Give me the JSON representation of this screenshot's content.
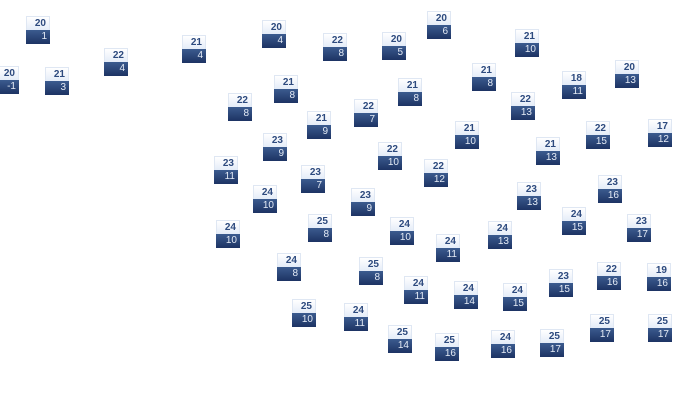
{
  "markers": [
    {
      "top": "20",
      "bottom": "1"
    },
    {
      "top": "22",
      "bottom": "4"
    },
    {
      "top": "20",
      "bottom": "-1"
    },
    {
      "top": "21",
      "bottom": "3"
    },
    {
      "top": "21",
      "bottom": "4"
    },
    {
      "top": "20",
      "bottom": "4"
    },
    {
      "top": "22",
      "bottom": "8"
    },
    {
      "top": "21",
      "bottom": "8"
    },
    {
      "top": "22",
      "bottom": "8"
    },
    {
      "top": "21",
      "bottom": "9"
    },
    {
      "top": "23",
      "bottom": "9"
    },
    {
      "top": "23",
      "bottom": "11"
    },
    {
      "top": "23",
      "bottom": "7"
    },
    {
      "top": "24",
      "bottom": "10"
    },
    {
      "top": "20",
      "bottom": "6"
    },
    {
      "top": "20",
      "bottom": "5"
    },
    {
      "top": "21",
      "bottom": "10"
    },
    {
      "top": "21",
      "bottom": "8"
    },
    {
      "top": "18",
      "bottom": "11"
    },
    {
      "top": "20",
      "bottom": "13"
    },
    {
      "top": "21",
      "bottom": "8"
    },
    {
      "top": "22",
      "bottom": "7"
    },
    {
      "top": "22",
      "bottom": "13"
    },
    {
      "top": "21",
      "bottom": "10"
    },
    {
      "top": "22",
      "bottom": "15"
    },
    {
      "top": "17",
      "bottom": "12"
    },
    {
      "top": "22",
      "bottom": "10"
    },
    {
      "top": "21",
      "bottom": "13"
    },
    {
      "top": "22",
      "bottom": "12"
    },
    {
      "top": "23",
      "bottom": "13"
    },
    {
      "top": "23",
      "bottom": "16"
    },
    {
      "top": "23",
      "bottom": "9"
    },
    {
      "top": "24",
      "bottom": "10"
    },
    {
      "top": "25",
      "bottom": "8"
    },
    {
      "top": "24",
      "bottom": "8"
    },
    {
      "top": "25",
      "bottom": "10"
    },
    {
      "top": "24",
      "bottom": "11"
    },
    {
      "top": "24",
      "bottom": "15"
    },
    {
      "top": "23",
      "bottom": "17"
    },
    {
      "top": "24",
      "bottom": "10"
    },
    {
      "top": "24",
      "bottom": "13"
    },
    {
      "top": "24",
      "bottom": "11"
    },
    {
      "top": "25",
      "bottom": "8"
    },
    {
      "top": "22",
      "bottom": "16"
    },
    {
      "top": "19",
      "bottom": "16"
    },
    {
      "top": "23",
      "bottom": "15"
    },
    {
      "top": "24",
      "bottom": "11"
    },
    {
      "top": "24",
      "bottom": "14"
    },
    {
      "top": "24",
      "bottom": "15"
    },
    {
      "top": "25",
      "bottom": "17"
    },
    {
      "top": "25",
      "bottom": "17"
    },
    {
      "top": "25",
      "bottom": "14"
    },
    {
      "top": "25",
      "bottom": "16"
    },
    {
      "top": "24",
      "bottom": "16"
    },
    {
      "top": "25",
      "bottom": "17"
    }
  ],
  "colors": {
    "label_top_text": "#2d4a7e",
    "label_bottom_bg": "#1d3363"
  }
}
